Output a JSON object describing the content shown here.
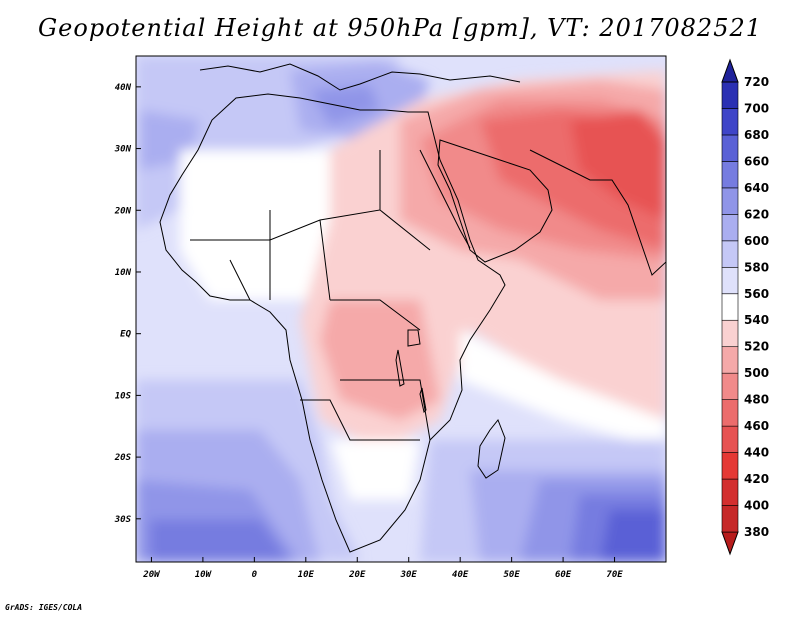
{
  "title": "Geopotential Height at 950hPa [gpm], VT: 2017082521",
  "credit": "GrADS: IGES/COLA",
  "map": {
    "projection": "latlon",
    "lon_range": [
      -23,
      80
    ],
    "lat_range": [
      -37,
      45
    ],
    "lon_ticks": [
      {
        "value": -20,
        "label": "20W"
      },
      {
        "value": -10,
        "label": "10W"
      },
      {
        "value": 0,
        "label": "0"
      },
      {
        "value": 10,
        "label": "10E"
      },
      {
        "value": 20,
        "label": "20E"
      },
      {
        "value": 30,
        "label": "30E"
      },
      {
        "value": 40,
        "label": "40E"
      },
      {
        "value": 50,
        "label": "50E"
      },
      {
        "value": 60,
        "label": "60E"
      },
      {
        "value": 70,
        "label": "70E"
      }
    ],
    "lat_ticks": [
      {
        "value": 40,
        "label": "40N"
      },
      {
        "value": 30,
        "label": "30N"
      },
      {
        "value": 20,
        "label": "20N"
      },
      {
        "value": 10,
        "label": "10N"
      },
      {
        "value": 0,
        "label": "EQ"
      },
      {
        "value": -10,
        "label": "10S"
      },
      {
        "value": -20,
        "label": "20S"
      },
      {
        "value": -30,
        "label": "30S"
      }
    ]
  },
  "colorbar": {
    "levels": [
      380,
      400,
      420,
      440,
      460,
      480,
      500,
      520,
      540,
      560,
      580,
      600,
      620,
      640,
      660,
      680,
      700,
      720
    ],
    "colors": [
      "#b71c1c",
      "#c62828",
      "#d32f2f",
      "#e53935",
      "#e75252",
      "#ec6c6c",
      "#f18a8a",
      "#f5a9a9",
      "#fad1d1",
      "#ffffff",
      "#dfe1fb",
      "#c5c8f6",
      "#aaaef0",
      "#9095e8",
      "#767ce0",
      "#5a61d6",
      "#3f45c8",
      "#2b30b3",
      "#1f229a"
    ]
  }
}
